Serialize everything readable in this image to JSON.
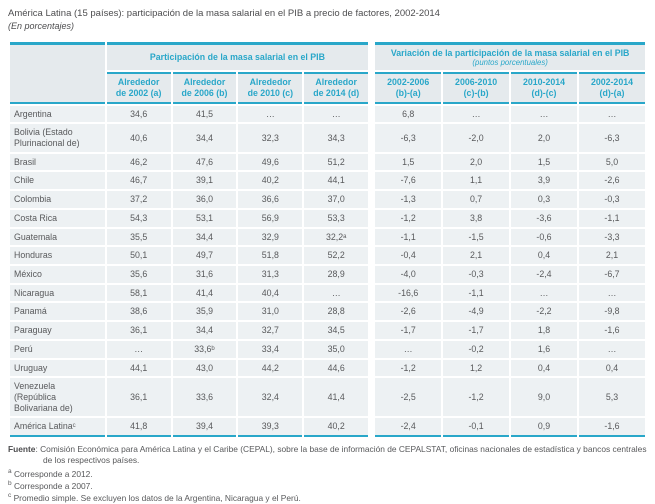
{
  "colors": {
    "accent_cyan": "#29a7c9",
    "header_bg": "#e5eaed",
    "row_bg": "#edf1f3",
    "text_gray": "#58595b"
  },
  "chart_data": {
    "type": "table",
    "title": "América Latina (15 países): participación de la masa salarial en el PIB a precio de factores, 2002-2014",
    "subtitle": "(En porcentajes)",
    "column_groups": [
      {
        "label": "Participación de la masa salarial en el PIB",
        "sublabel": ""
      },
      {
        "label": "Variación de la participación de la masa salarial en el PIB",
        "sublabel": "(puntos porcentuales)"
      }
    ],
    "columns": [
      "Alrededor\nde 2002 (a)",
      "Alrededor\nde 2006 (b)",
      "Alrededor\nde 2010 (c)",
      "Alrededor\nde 2014 (d)",
      "2002-2006\n(b)-(a)",
      "2006-2010\n(c)-(b)",
      "2010-2014\n(d)-(c)",
      "2002-2014\n(d)-(a)"
    ],
    "rows": [
      {
        "country": "Argentina",
        "values": [
          "34,6",
          "41,5",
          "…",
          "…",
          "6,8",
          "…",
          "…",
          "…"
        ]
      },
      {
        "country": "Bolivia (Estado\nPlurinacional de)",
        "values": [
          "40,6",
          "34,4",
          "32,3",
          "34,3",
          "-6,3",
          "-2,0",
          "2,0",
          "-6,3"
        ]
      },
      {
        "country": "Brasil",
        "values": [
          "46,2",
          "47,6",
          "49,6",
          "51,2",
          "1,5",
          "2,0",
          "1,5",
          "5,0"
        ]
      },
      {
        "country": "Chile",
        "values": [
          "46,7",
          "39,1",
          "40,2",
          "44,1",
          "-7,6",
          "1,1",
          "3,9",
          "-2,6"
        ]
      },
      {
        "country": "Colombia",
        "values": [
          "37,2",
          "36,0",
          "36,6",
          "37,0",
          "-1,3",
          "0,7",
          "0,3",
          "-0,3"
        ]
      },
      {
        "country": "Costa Rica",
        "values": [
          "54,3",
          "53,1",
          "56,9",
          "53,3",
          "-1,2",
          "3,8",
          "-3,6",
          "-1,1"
        ]
      },
      {
        "country": "Guatemala",
        "values": [
          "35,5",
          "34,4",
          "32,9",
          "32,2ᵃ",
          "-1,1",
          "-1,5",
          "-0,6",
          "-3,3"
        ]
      },
      {
        "country": "Honduras",
        "values": [
          "50,1",
          "49,7",
          "51,8",
          "52,2",
          "-0,4",
          "2,1",
          "0,4",
          "2,1"
        ]
      },
      {
        "country": "México",
        "values": [
          "35,6",
          "31,6",
          "31,3",
          "28,9",
          "-4,0",
          "-0,3",
          "-2,4",
          "-6,7"
        ]
      },
      {
        "country": "Nicaragua",
        "values": [
          "58,1",
          "41,4",
          "40,4",
          "…",
          "-16,6",
          "-1,1",
          "…",
          "…"
        ]
      },
      {
        "country": "Panamá",
        "values": [
          "38,6",
          "35,9",
          "31,0",
          "28,8",
          "-2,6",
          "-4,9",
          "-2,2",
          "-9,8"
        ]
      },
      {
        "country": "Paraguay",
        "values": [
          "36,1",
          "34,4",
          "32,7",
          "34,5",
          "-1,7",
          "-1,7",
          "1,8",
          "-1,6"
        ]
      },
      {
        "country": "Perú",
        "values": [
          "…",
          "33,6ᵇ",
          "33,4",
          "35,0",
          "…",
          "-0,2",
          "1,6",
          "…"
        ]
      },
      {
        "country": "Uruguay",
        "values": [
          "44,1",
          "43,0",
          "44,2",
          "44,6",
          "-1,2",
          "1,2",
          "0,4",
          "0,4"
        ]
      },
      {
        "country": "Venezuela\n(República\nBolivariana de)",
        "values": [
          "36,1",
          "33,6",
          "32,4",
          "41,4",
          "-2,5",
          "-1,2",
          "9,0",
          "5,3"
        ]
      },
      {
        "country": "América Latinaᶜ",
        "values": [
          "41,8",
          "39,4",
          "39,3",
          "40,2",
          "-2,4",
          "-0,1",
          "0,9",
          "-1,6"
        ],
        "total": true
      }
    ]
  },
  "footer": {
    "fuente_label": "Fuente",
    "fuente_text": ": Comisión Económica para América Latina y el Caribe (CEPAL), sobre la base de información de CEPALSTAT, oficinas nacionales de estadística y bancos centrales de los respectivos países.",
    "notes": [
      {
        "marker": "a",
        "text": "Corresponde a 2012."
      },
      {
        "marker": "b",
        "text": "Corresponde a 2007."
      },
      {
        "marker": "c",
        "text": "Promedio simple. Se excluyen los datos de la Argentina, Nicaragua y el Perú."
      }
    ]
  }
}
